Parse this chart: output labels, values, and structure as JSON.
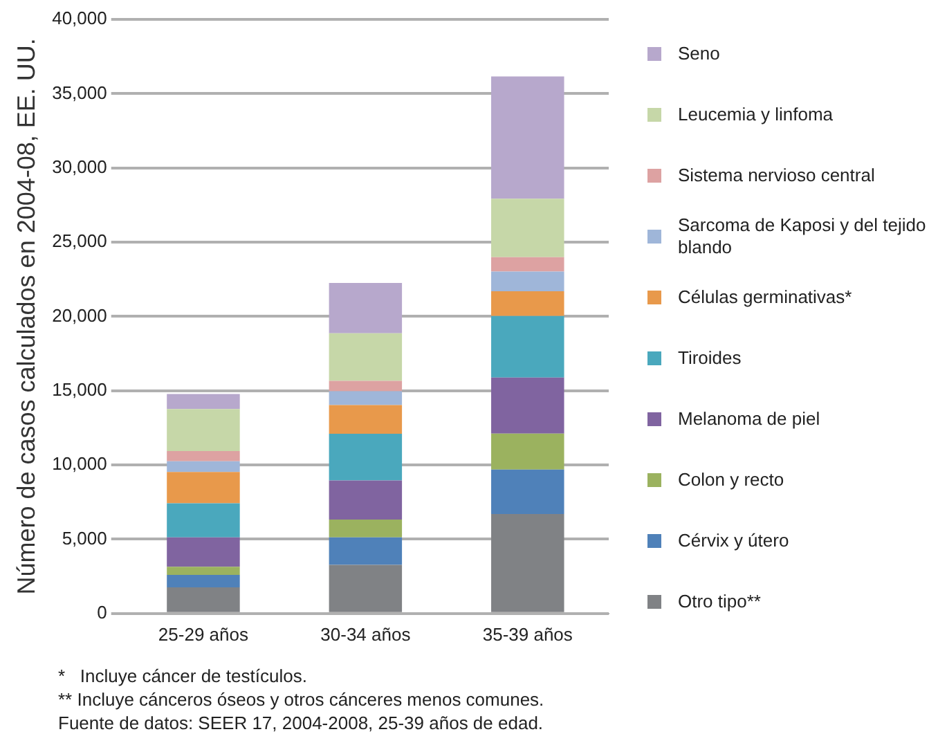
{
  "chart_data": {
    "type": "bar",
    "stacked": true,
    "ylabel": "Número de casos calculados en 2004-08, EE. UU.",
    "categories": [
      "25-29 años",
      "30-34 años",
      "35-39 años"
    ],
    "series": [
      {
        "name": "Otro tipo**",
        "color": "#808285",
        "values": [
          1760,
          3270,
          6700
        ]
      },
      {
        "name": "Cérvix y útero",
        "color": "#4f81b9",
        "values": [
          840,
          1850,
          2990
        ]
      },
      {
        "name": "Colon y recto",
        "color": "#9bb25f",
        "values": [
          550,
          1200,
          2420
        ]
      },
      {
        "name": "Melanoma de piel",
        "color": "#8064a0",
        "values": [
          1980,
          2640,
          3770
        ]
      },
      {
        "name": "Tiroides",
        "color": "#4aa8bd",
        "values": [
          2290,
          3140,
          4150
        ]
      },
      {
        "name": "Células germinativas*",
        "color": "#e8994b",
        "values": [
          2110,
          1930,
          1670
        ]
      },
      {
        "name": "Sarcoma de Kaposi y del tejido blando",
        "color": "#9fb6d9",
        "values": [
          720,
          940,
          1320
        ]
      },
      {
        "name": "Sistema nervioso central",
        "color": "#dda2a2",
        "values": [
          690,
          690,
          970
        ]
      },
      {
        "name": "Leucemia y linfoma",
        "color": "#c6d7a8",
        "values": [
          2830,
          3210,
          3930
        ]
      },
      {
        "name": "Seno",
        "color": "#b7a8cc",
        "values": [
          1010,
          3390,
          8240
        ]
      }
    ],
    "ylim": [
      0,
      40000
    ],
    "yticks": [
      {
        "value": 0,
        "label": "0"
      },
      {
        "value": 5000,
        "label": "5,000"
      },
      {
        "value": 10000,
        "label": "10,000"
      },
      {
        "value": 15000,
        "label": "15,000"
      },
      {
        "value": 20000,
        "label": "20,000"
      },
      {
        "value": 25000,
        "label": "25,000"
      },
      {
        "value": 30000,
        "label": "30,000"
      },
      {
        "value": 35000,
        "label": "35,000"
      },
      {
        "value": 40000,
        "label": "40,000"
      }
    ],
    "grid": "y",
    "legend": "right",
    "annotations": [
      "*   Incluye cáncer de testículos.",
      "** Incluye cánceros óseos y otros cánceres menos comunes.",
      "Fuente de datos: SEER 17, 2004-2008, 25-39 años de edad."
    ]
  }
}
